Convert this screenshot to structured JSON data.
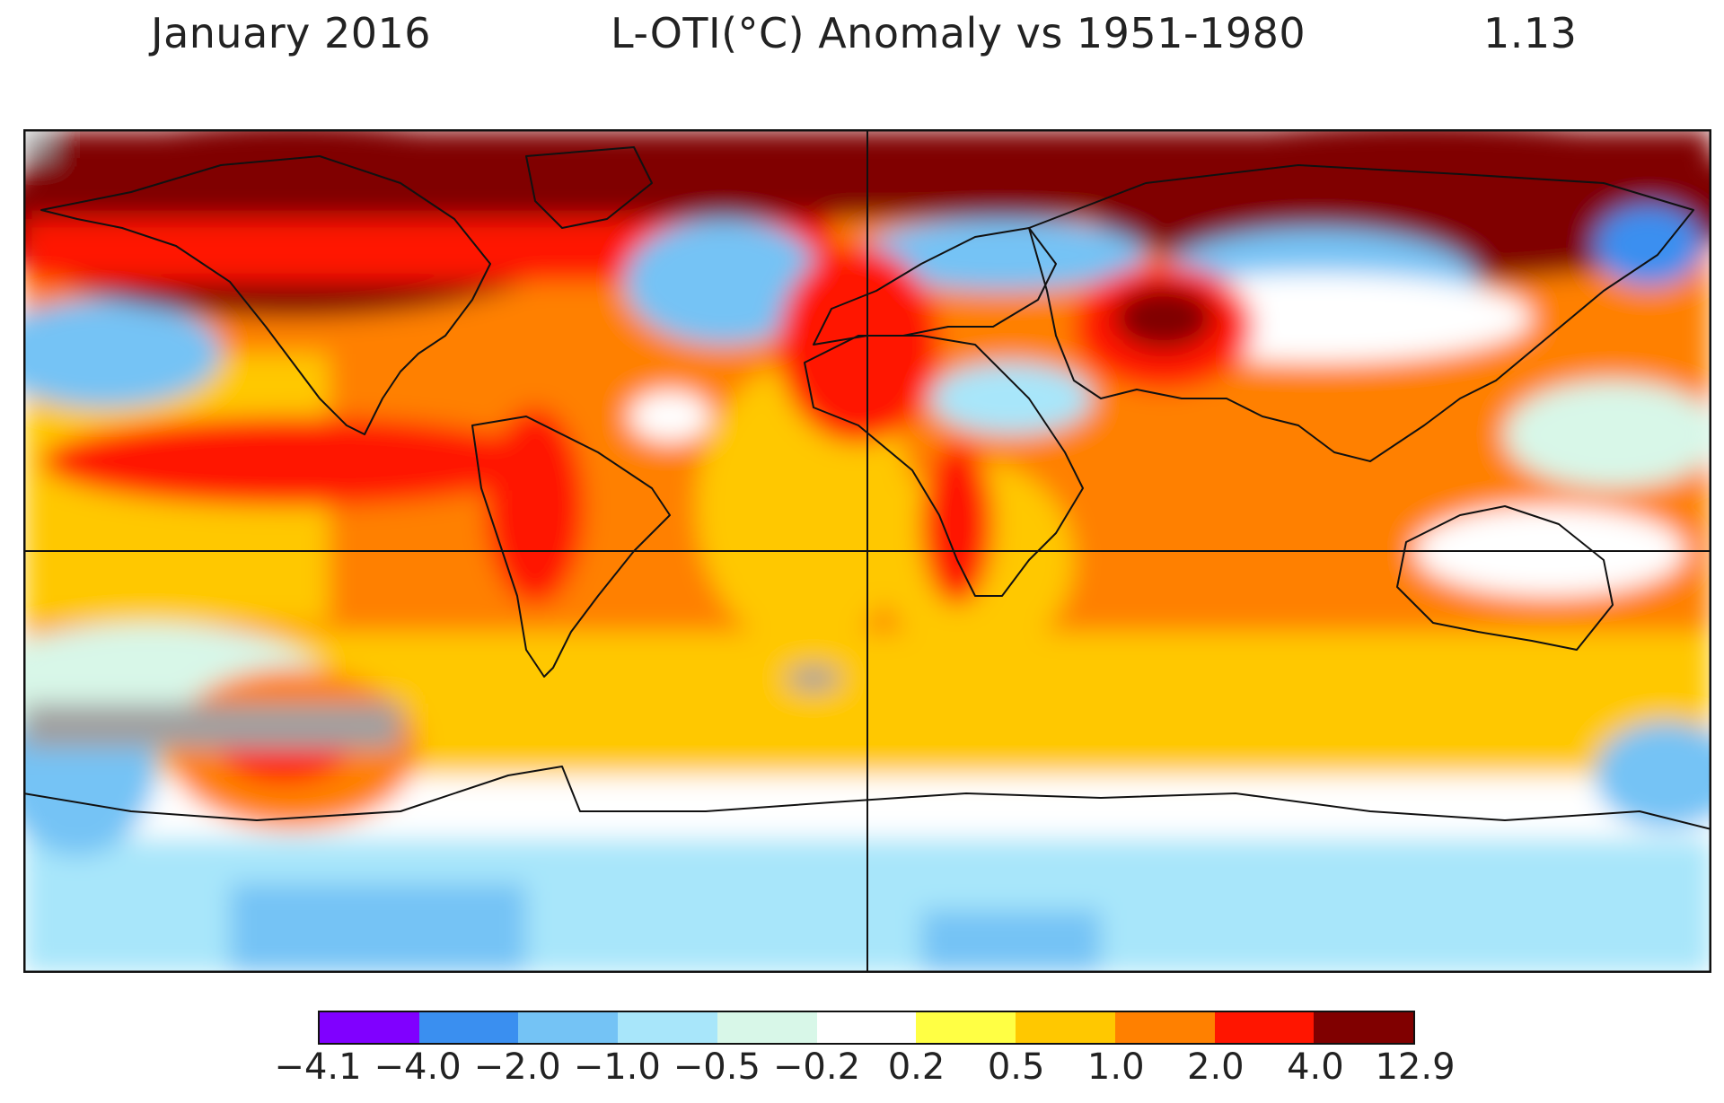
{
  "header": {
    "date": "January 2016",
    "title": "L-OTI(°C) Anomaly vs 1951-1980",
    "global_mean": "1.13"
  },
  "legend": {
    "tick_labels": [
      "−4.1",
      "−4.0",
      "−2.0",
      "−1.0",
      "−0.5",
      "−0.2",
      "0.2",
      "0.5",
      "1.0",
      "2.0",
      "4.0",
      "12.9"
    ],
    "bins": [
      {
        "range": [
          -4.1,
          -4.0
        ],
        "color": "#8000ff"
      },
      {
        "range": [
          -4.0,
          -2.0
        ],
        "color": "#3a8ff0"
      },
      {
        "range": [
          -2.0,
          -1.0
        ],
        "color": "#74c3f5"
      },
      {
        "range": [
          -1.0,
          -0.5
        ],
        "color": "#a8e6fa"
      },
      {
        "range": [
          -0.5,
          -0.2
        ],
        "color": "#d8f7e8"
      },
      {
        "range": [
          -0.2,
          0.2
        ],
        "color": "#ffffff"
      },
      {
        "range": [
          0.2,
          0.5
        ],
        "color": "#ffff44"
      },
      {
        "range": [
          0.5,
          1.0
        ],
        "color": "#ffc800"
      },
      {
        "range": [
          1.0,
          2.0
        ],
        "color": "#ff8000"
      },
      {
        "range": [
          2.0,
          4.0
        ],
        "color": "#ff1500"
      },
      {
        "range": [
          4.0,
          12.9
        ],
        "color": "#800000"
      }
    ],
    "missing_color": "#a0a0a0"
  },
  "map": {
    "projection": "equirectangular",
    "lon_range": [
      -180,
      180
    ],
    "lat_range": [
      -90,
      90
    ],
    "gridlines": {
      "equator": true,
      "prime_meridian": true
    }
  }
}
